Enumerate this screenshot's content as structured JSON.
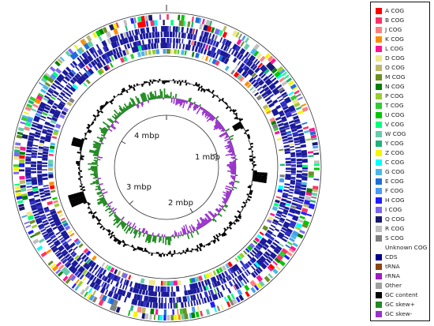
{
  "scale_labels": [
    "1 mbp",
    "2 mbp",
    "3 mbp",
    "4 mbp"
  ],
  "legend": [
    {
      "label": "A COG",
      "color": "#ff0000"
    },
    {
      "label": "B COG",
      "color": "#ff3366"
    },
    {
      "label": "J COG",
      "color": "#ff8080"
    },
    {
      "label": "K COG",
      "color": "#ff8c00"
    },
    {
      "label": "L COG",
      "color": "#ff1493"
    },
    {
      "label": "D COG",
      "color": "#f0e68c"
    },
    {
      "label": "O COG",
      "color": "#bdb76b"
    },
    {
      "label": "M COG",
      "color": "#6b8e23"
    },
    {
      "label": "N COG",
      "color": "#008000"
    },
    {
      "label": "P COG",
      "color": "#9acd32"
    },
    {
      "label": "T COG",
      "color": "#32cd32"
    },
    {
      "label": "U COG",
      "color": "#00c800"
    },
    {
      "label": "V COG",
      "color": "#00ff7f"
    },
    {
      "label": "W COG",
      "color": "#66cdaa"
    },
    {
      "label": "Y COG",
      "color": "#20b27a"
    },
    {
      "label": "Z COG",
      "color": "#f5f500"
    },
    {
      "label": "C COG",
      "color": "#00ffff"
    },
    {
      "label": "G COG",
      "color": "#4db8e8"
    },
    {
      "label": "E COG",
      "color": "#1e6fd9"
    },
    {
      "label": "F COG",
      "color": "#4a9cf0"
    },
    {
      "label": "H COG",
      "color": "#1f1fff"
    },
    {
      "label": "I COG",
      "color": "#7b68ee"
    },
    {
      "label": "Q COG",
      "color": "#191970"
    },
    {
      "label": "R COG",
      "color": "#c0c0c0"
    },
    {
      "label": "S COG",
      "color": "#808080"
    },
    {
      "label": "Unknown COG",
      "color": "#ffffff"
    },
    {
      "label": "CDS",
      "color": "#00008b"
    },
    {
      "label": "tRNA",
      "color": "#8b4513"
    },
    {
      "label": "rRNA",
      "color": "#9b1fbf"
    },
    {
      "label": "Other",
      "color": "#a0a0a0"
    },
    {
      "label": "GC content",
      "color": "#000000"
    },
    {
      "label": "GC skew+",
      "color": "#228b22"
    },
    {
      "label": "GC skew-",
      "color": "#9932cc"
    }
  ]
}
